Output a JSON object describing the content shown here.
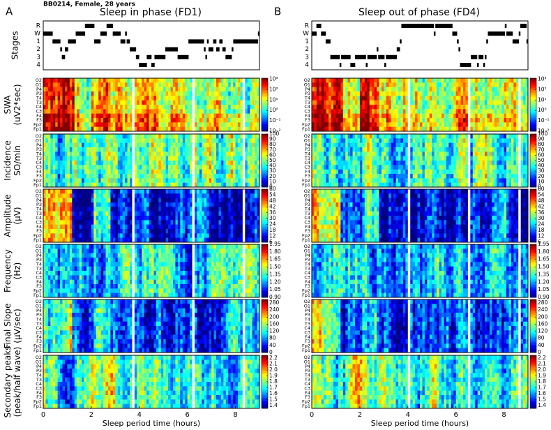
{
  "header": {
    "subject": "BB0214, Female, 28 years"
  },
  "panels": [
    {
      "label": "A",
      "title": "Sleep in phase (FD1)"
    },
    {
      "label": "B",
      "title": "Sleep out of phase (FD4)"
    }
  ],
  "stages": {
    "ylabel": "Stages",
    "levels": [
      "R",
      "W",
      "1",
      "2",
      "3",
      "4"
    ]
  },
  "channels": [
    "O2",
    "O1",
    "P4",
    "P3",
    "T4",
    "T3",
    "C4",
    "C3",
    "F4",
    "F3",
    "Fp2",
    "Fp1"
  ],
  "x_axis": {
    "label": "Sleep period time (hours)",
    "lim": [
      0,
      9
    ],
    "ticks": [
      0,
      2,
      4,
      6,
      8
    ]
  },
  "rows": [
    {
      "ylabel": [
        "SWA",
        "(uV2*sec)"
      ],
      "clim": [
        -2,
        3.1
      ],
      "ticks": [
        {
          "value": 3,
          "label": "10³"
        },
        {
          "value": 2,
          "label": "10²"
        },
        {
          "value": 1,
          "label": "10¹"
        },
        {
          "value": 0,
          "label": "10⁰"
        },
        {
          "value": -1,
          "label": "10⁻¹"
        },
        {
          "value": -2,
          "label": "10⁻²"
        }
      ]
    },
    {
      "ylabel": [
        "Incidence",
        "SO/min"
      ],
      "clim": [
        0,
        100
      ],
      "ticks": [
        100,
        90,
        80,
        70,
        60,
        50,
        40,
        30,
        20,
        10,
        0
      ]
    },
    {
      "ylabel": [
        "Amplitude",
        "(µV)"
      ],
      "clim": [
        6,
        60
      ],
      "ticks": [
        60,
        54,
        48,
        42,
        36,
        30,
        24,
        18,
        12,
        6
      ]
    },
    {
      "ylabel": [
        "Frequency",
        "(Hz)"
      ],
      "clim": [
        0.9,
        1.95
      ],
      "ticks": [
        1.95,
        {
          "value": 1.8,
          "label": "1.80"
        },
        1.65,
        {
          "value": 1.5,
          "label": "1.50"
        },
        1.35,
        {
          "value": 1.2,
          "label": "1.20"
        },
        1.05,
        {
          "value": 0.9,
          "label": "0.90"
        }
      ]
    },
    {
      "ylabel": [
        "Final Slope",
        "(µV/sec)"
      ],
      "clim": [
        0,
        300
      ],
      "ticks": [
        280,
        240,
        200,
        160,
        120,
        80,
        40,
        0
      ]
    },
    {
      "ylabel": [
        "Secondary peaks",
        "(peak/half wave)"
      ],
      "clim": [
        1.35,
        2.25
      ],
      "ticks": [
        2.2,
        2.1,
        {
          "value": 2,
          "label": "2.0"
        },
        1.9,
        1.8,
        1.7,
        1.6,
        1.5,
        1.4
      ]
    }
  ]
}
